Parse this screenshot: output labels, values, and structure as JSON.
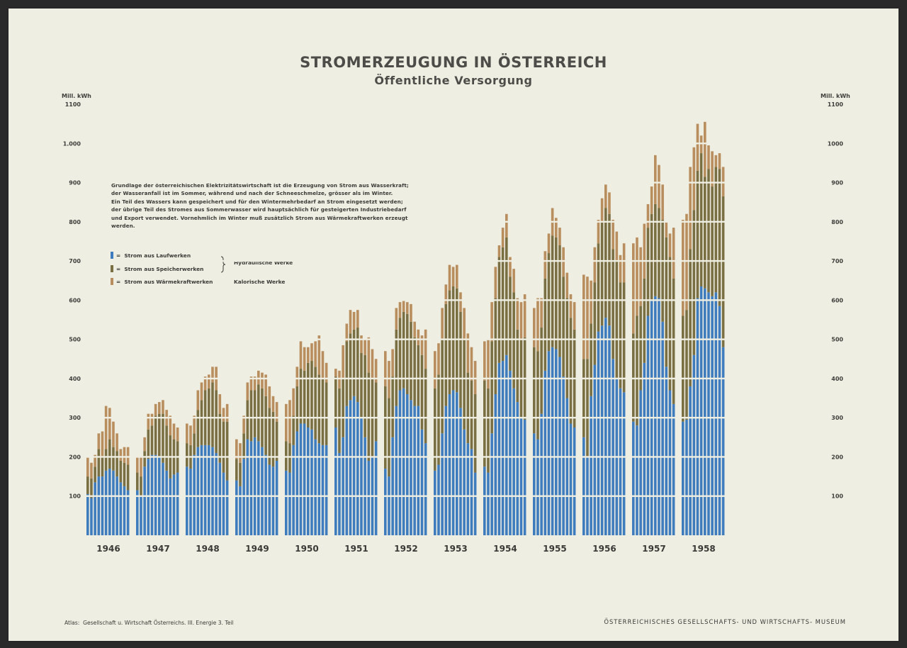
{
  "header": {
    "title": "STROMERZEUGUNG IN ÖSTERREICH",
    "subtitle": "Öffentliche Versorgung"
  },
  "text": {
    "unit_left": "Mill. kWh",
    "unit_right": "Mill. kWh",
    "intro_lines": [
      "Grundlage der österreichischen Elektrizitätswirtschaft ist die Erzeugung von Strom aus Wasserkraft;",
      "der Wasseranfall ist im Sommer, während und nach der Schneeschmelze, grösser als im Winter.",
      "Ein Teil des Wassers kann gespeichert und für den Wintermehrbedarf an Strom eingesetzt werden;",
      "der übrige Teil des Stromes aus Sommerwasser wird hauptsächlich für gesteigerten Industriebedarf",
      "und Export verwendet. Vornehmlich im Winter muß zusätzlich Strom aus Wärmekraftwerken erzeugt",
      "werden."
    ]
  },
  "legend": {
    "items": [
      {
        "symbol": "=",
        "label": "Strom aus Laufwerken",
        "color": "#3f7cbd"
      },
      {
        "symbol": "=",
        "label": "Strom aus Speicherwerken",
        "color": "#7a6f43"
      },
      {
        "symbol": "=",
        "label": "Strom aus Wärmekraftwerken",
        "color": "#b98e5e"
      }
    ],
    "group_hydraulic": "Hydraulische Werke",
    "group_thermal": "Kalorische Werke"
  },
  "footer": {
    "atlas_label": "Atlas:",
    "atlas_text": "Gesellschaft u. Wirtschaft Österreichs.  III. Energie  3. Teil",
    "museum": "ÖSTERREICHISCHES GESELLSCHAFTS- UND WIRTSCHAFTS- MUSEUM"
  },
  "chart_data": {
    "type": "bar",
    "stacked": true,
    "title": "STROMERZEUGUNG IN ÖSTERREICH",
    "subtitle": "Öffentliche Versorgung",
    "ylabel": "Mill. kWh",
    "ylim": [
      0,
      1100
    ],
    "yticks": [
      100,
      200,
      300,
      400,
      500,
      600,
      700,
      800,
      900,
      1000,
      1100
    ],
    "ytick_labels": [
      "100",
      "200",
      "300",
      "400",
      "500",
      "600",
      "700",
      "800",
      "900",
      "1.000",
      "1100"
    ],
    "ytick_labels_right": [
      "100",
      "200",
      "300",
      "400",
      "500",
      "600",
      "700",
      "800",
      "900",
      "1000",
      "1100"
    ],
    "categories": [
      "1946",
      "1947",
      "1948",
      "1949",
      "1950",
      "1951",
      "1952",
      "1953",
      "1954",
      "1955",
      "1956",
      "1957",
      "1958"
    ],
    "months_per_year": 12,
    "colors": [
      "#3f7cbd",
      "#7a6f43",
      "#b98e5e"
    ],
    "series": [
      {
        "name": "Strom aus Laufwerken",
        "values": [
          [
            105,
            95,
            135,
            150,
            150,
            165,
            170,
            165,
            150,
            135,
            125,
            115
          ],
          [
            115,
            100,
            175,
            195,
            205,
            205,
            200,
            185,
            165,
            145,
            155,
            160
          ],
          [
            175,
            170,
            205,
            225,
            230,
            230,
            230,
            225,
            210,
            185,
            160,
            140
          ],
          [
            140,
            125,
            195,
            245,
            240,
            250,
            240,
            225,
            205,
            180,
            175,
            190
          ],
          [
            165,
            160,
            230,
            265,
            285,
            285,
            275,
            270,
            245,
            235,
            230,
            230
          ],
          [
            275,
            210,
            250,
            330,
            345,
            355,
            340,
            300,
            250,
            190,
            200,
            240
          ],
          [
            170,
            150,
            250,
            330,
            370,
            375,
            360,
            345,
            330,
            330,
            270,
            235
          ],
          [
            165,
            180,
            260,
            330,
            360,
            370,
            365,
            325,
            270,
            235,
            220,
            160
          ],
          [
            175,
            160,
            260,
            360,
            440,
            445,
            460,
            420,
            375,
            340,
            300,
            295
          ],
          [
            260,
            245,
            310,
            420,
            470,
            480,
            475,
            455,
            405,
            350,
            285,
            275
          ],
          [
            250,
            200,
            355,
            435,
            520,
            535,
            555,
            535,
            450,
            400,
            375,
            365
          ],
          [
            290,
            280,
            370,
            440,
            560,
            600,
            610,
            605,
            545,
            430,
            370,
            335
          ],
          [
            290,
            295,
            380,
            460,
            605,
            635,
            630,
            620,
            610,
            620,
            585,
            480
          ]
        ]
      },
      {
        "name": "Strom aus Speicherwerken",
        "values": [
          [
            45,
            50,
            40,
            70,
            50,
            55,
            75,
            60,
            65,
            55,
            60,
            65
          ],
          [
            45,
            50,
            40,
            75,
            75,
            100,
            110,
            125,
            115,
            110,
            90,
            80
          ],
          [
            60,
            60,
            55,
            95,
            115,
            140,
            145,
            165,
            160,
            125,
            130,
            150
          ],
          [
            55,
            60,
            65,
            100,
            130,
            120,
            145,
            150,
            150,
            145,
            140,
            100
          ],
          [
            75,
            75,
            75,
            115,
            140,
            135,
            165,
            175,
            185,
            175,
            170,
            160
          ],
          [
            130,
            165,
            150,
            165,
            170,
            170,
            190,
            165,
            210,
            225,
            200,
            150
          ],
          [
            210,
            200,
            155,
            195,
            185,
            195,
            205,
            200,
            175,
            155,
            190,
            190
          ],
          [
            210,
            230,
            240,
            260,
            265,
            265,
            265,
            245,
            230,
            180,
            175,
            200
          ],
          [
            220,
            215,
            235,
            245,
            270,
            290,
            300,
            240,
            245,
            185,
            200,
            210
          ],
          [
            220,
            225,
            220,
            235,
            250,
            285,
            285,
            285,
            255,
            255,
            270,
            250
          ],
          [
            200,
            250,
            185,
            210,
            225,
            265,
            280,
            285,
            280,
            300,
            270,
            280
          ],
          [
            225,
            280,
            215,
            215,
            225,
            220,
            235,
            230,
            260,
            330,
            340,
            320
          ],
          [
            270,
            280,
            350,
            370,
            325,
            340,
            285,
            315,
            280,
            320,
            350,
            385
          ]
        ]
      },
      {
        "name": "Strom aus Wärmekraftwerken",
        "values": [
          [
            50,
            40,
            30,
            40,
            65,
            110,
            80,
            65,
            45,
            30,
            40,
            45
          ],
          [
            40,
            50,
            35,
            40,
            30,
            30,
            30,
            35,
            40,
            50,
            40,
            35
          ],
          [
            50,
            50,
            45,
            50,
            45,
            35,
            35,
            40,
            60,
            50,
            35,
            45
          ],
          [
            50,
            50,
            45,
            45,
            35,
            35,
            35,
            40,
            55,
            55,
            40,
            50
          ],
          [
            95,
            110,
            70,
            50,
            70,
            60,
            40,
            45,
            65,
            100,
            70,
            50
          ],
          [
            20,
            45,
            85,
            45,
            60,
            45,
            45,
            45,
            40,
            90,
            75,
            60
          ],
          [
            90,
            95,
            70,
            55,
            40,
            30,
            30,
            45,
            40,
            40,
            50,
            100
          ],
          [
            95,
            80,
            80,
            50,
            65,
            50,
            60,
            50,
            80,
            100,
            85,
            85
          ],
          [
            100,
            125,
            100,
            80,
            30,
            50,
            60,
            50,
            60,
            80,
            95,
            110
          ],
          [
            100,
            135,
            75,
            70,
            50,
            70,
            50,
            45,
            75,
            65,
            60,
            70
          ],
          [
            215,
            210,
            110,
            90,
            60,
            60,
            60,
            55,
            75,
            75,
            70,
            100
          ],
          [
            230,
            200,
            150,
            140,
            60,
            70,
            125,
            110,
            90,
            40,
            60,
            130
          ],
          [
            245,
            245,
            210,
            160,
            120,
            45,
            140,
            60,
            90,
            30,
            40,
            75
          ]
        ]
      }
    ]
  }
}
